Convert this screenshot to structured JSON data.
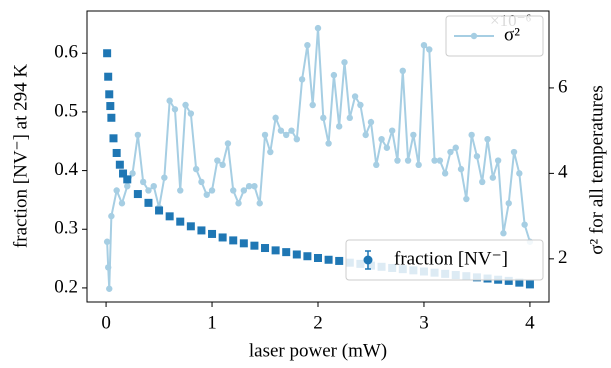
{
  "chart_data": {
    "type": "scatter",
    "xlabel": "laser power (mW)",
    "ylabel": "fraction [NV⁻] at 294 K",
    "y2label": "σ² for all temperatures",
    "y2_offset_text": "×10⁻⁶",
    "xlim": [
      -0.18,
      4.18
    ],
    "xticks": [
      0,
      1,
      2,
      3,
      4
    ],
    "ylim": [
      0.176,
      0.672
    ],
    "yticks": [
      0.2,
      0.3,
      0.4,
      0.5,
      0.6
    ],
    "y2lim": [
      0.99,
      7.8
    ],
    "y2ticks": [
      2,
      4,
      6
    ],
    "series": [
      {
        "name": "σ²",
        "color": "#a6cee3",
        "axis": "y2",
        "style": "line",
        "legend": "upper right",
        "x": [
          0.01,
          0.02,
          0.03,
          0.05,
          0.1,
          0.15,
          0.2,
          0.25,
          0.3,
          0.35,
          0.4,
          0.45,
          0.5,
          0.55,
          0.6,
          0.65,
          0.7,
          0.75,
          0.8,
          0.85,
          0.9,
          0.95,
          1.0,
          1.05,
          1.1,
          1.15,
          1.2,
          1.25,
          1.3,
          1.35,
          1.4,
          1.45,
          1.5,
          1.55,
          1.6,
          1.65,
          1.7,
          1.75,
          1.8,
          1.85,
          1.9,
          1.95,
          2.0,
          2.05,
          2.1,
          2.15,
          2.2,
          2.25,
          2.3,
          2.35,
          2.4,
          2.45,
          2.5,
          2.55,
          2.6,
          2.65,
          2.7,
          2.75,
          2.8,
          2.85,
          2.9,
          2.95,
          3.0,
          3.05,
          3.1,
          3.15,
          3.2,
          3.25,
          3.3,
          3.35,
          3.4,
          3.45,
          3.5,
          3.55,
          3.6,
          3.65,
          3.7,
          3.75,
          3.8,
          3.85,
          3.9,
          3.95,
          4.0
        ],
        "values": [
          2.4,
          1.8,
          1.3,
          3.0,
          3.6,
          3.3,
          3.7,
          4.0,
          4.9,
          3.8,
          3.6,
          3.7,
          3.2,
          3.9,
          5.7,
          5.5,
          3.6,
          5.6,
          5.4,
          4.1,
          3.8,
          3.5,
          3.6,
          4.3,
          4.2,
          4.7,
          3.6,
          3.3,
          3.6,
          3.7,
          3.7,
          3.3,
          4.9,
          4.5,
          5.3,
          5.0,
          4.9,
          5.0,
          4.8,
          6.2,
          7.0,
          5.6,
          7.4,
          5.3,
          4.7,
          6.3,
          5.1,
          6.6,
          5.3,
          5.8,
          5.6,
          4.9,
          5.2,
          4.2,
          4.8,
          4.6,
          5.0,
          4.3,
          6.4,
          4.3,
          4.9,
          4.2,
          7.0,
          6.9,
          4.3,
          4.3,
          4.0,
          4.5,
          4.6,
          4.1,
          3.4,
          4.9,
          4.4,
          3.8,
          4.8,
          3.9,
          4.3,
          2.6,
          3.3,
          4.5,
          4.0,
          2.8,
          2.4
        ]
      },
      {
        "name": "fraction [NV⁻]",
        "color": "#1f77b4",
        "axis": "y",
        "style": "errorbar",
        "legend": "lower right",
        "x": [
          0.01,
          0.02,
          0.03,
          0.04,
          0.05,
          0.07,
          0.1,
          0.13,
          0.16,
          0.2,
          0.3,
          0.4,
          0.5,
          0.6,
          0.7,
          0.8,
          0.9,
          1.0,
          1.1,
          1.2,
          1.3,
          1.4,
          1.5,
          1.6,
          1.7,
          1.8,
          1.9,
          2.0,
          2.1,
          2.2,
          2.3,
          2.4,
          2.5,
          2.6,
          2.7,
          2.8,
          2.9,
          3.0,
          3.1,
          3.2,
          3.3,
          3.4,
          3.5,
          3.6,
          3.7,
          3.8,
          3.9,
          4.0
        ],
        "values": [
          0.6,
          0.56,
          0.53,
          0.51,
          0.49,
          0.455,
          0.43,
          0.41,
          0.395,
          0.385,
          0.36,
          0.345,
          0.332,
          0.322,
          0.313,
          0.305,
          0.298,
          0.292,
          0.286,
          0.281,
          0.276,
          0.272,
          0.268,
          0.264,
          0.261,
          0.257,
          0.254,
          0.251,
          0.248,
          0.246,
          0.243,
          0.241,
          0.238,
          0.236,
          0.234,
          0.232,
          0.23,
          0.228,
          0.226,
          0.224,
          0.222,
          0.22,
          0.218,
          0.216,
          0.214,
          0.212,
          0.209,
          0.206
        ]
      }
    ]
  }
}
